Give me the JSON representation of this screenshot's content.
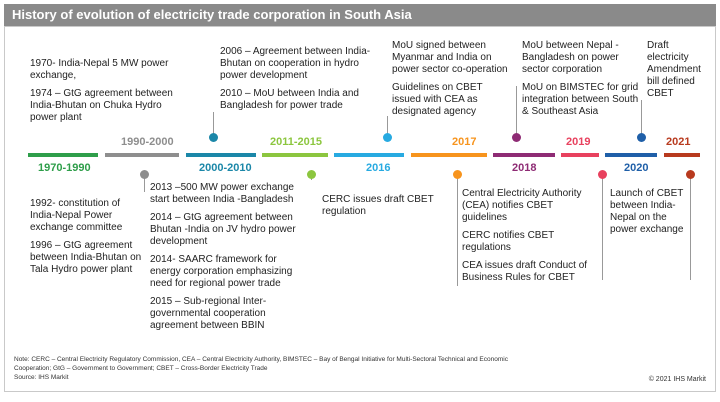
{
  "title": "History  of evolution of electricity trade corporation  in South Asia",
  "segments": [
    {
      "label": "1970-1990",
      "color": "#2e9e4a"
    },
    {
      "label": "1990-2000",
      "color": "#8e8e8e"
    },
    {
      "label": "2000-2010",
      "color": "#1b87a8"
    },
    {
      "label": "2011-2015",
      "color": "#8cc63f"
    },
    {
      "label": "2016",
      "color": "#27aae1"
    },
    {
      "label": "2017",
      "color": "#f7941d"
    },
    {
      "label": "2018",
      "color": "#8e2b74"
    },
    {
      "label": "2019",
      "color": "#e8415e"
    },
    {
      "label": "2020",
      "color": "#1f5fa8"
    },
    {
      "label": "2021",
      "color": "#b83a1e"
    }
  ],
  "events": {
    "e1970": [
      "1970- India-Nepal 5 MW power exchange,",
      "1974 – GtG agreement between India-Bhutan on Chuka Hydro power plant"
    ],
    "e1990": [
      "1992- constitution of India-Nepal Power exchange committee",
      "1996 – GtG agreement between India-Bhutan on Tala Hydro power plant"
    ],
    "e2000": [
      "2006 – Agreement between India-Bhutan on cooperation in hydro power development",
      "2010 – MoU between India and Bangladesh for power trade"
    ],
    "e2011": [
      "2013 –500 MW power exchange start between India -Bangladesh",
      "2014 – GtG agreement between Bhutan -India on JV hydro power development",
      "2014- SAARC framework for energy corporation emphasizing need for regional power trade",
      "2015 – Sub-regional Inter-governmental cooperation agreement between BBIN"
    ],
    "e2016top": [
      "MoU signed between Myanmar and India on power sector co-operation",
      "Guidelines on CBET issued with CEA as designated agency"
    ],
    "e2016bot": [
      "CERC  issues draft CBET regulation"
    ],
    "e2017": [
      "Central Electricity Authority (CEA) notifies CBET guidelines",
      "CERC  notifies CBET regulations",
      "CEA issues draft Conduct of Business Rules for CBET"
    ],
    "e2018": [
      "MoU between Nepal - Bangladesh on power sector corporation",
      "MoU on BIMSTEC  for grid integration between South & Southeast Asia"
    ],
    "e2019": [
      "Launch of CBET between India-Nepal on the power exchange"
    ],
    "e2020": [
      "Draft electricity Amendment bill defined CBET"
    ]
  },
  "note": "Note: CERC – Central Electricity Regulatory Commission, CEA – Central Electricity Authority, BIMSTEC – Bay of Bengal Initiative for Multi-Sectoral Technical and Economic Cooperation;  GtG – Government to Government;  CBET – Cross-Border Electricity Trade",
  "source": "Source:  IHS Markit",
  "copyright": "© 2021 IHS Markit"
}
